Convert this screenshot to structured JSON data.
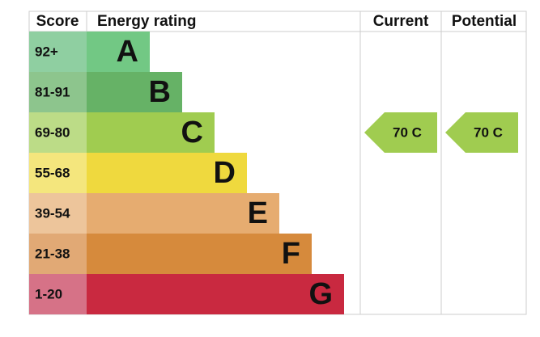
{
  "header": {
    "score": "Score",
    "rating": "Energy rating",
    "current": "Current",
    "potential": "Potential"
  },
  "rows": [
    {
      "score": "92+",
      "letter": "A",
      "color": "#72c884",
      "score_color": "#8fcfa1"
    },
    {
      "score": "81-91",
      "letter": "B",
      "color": "#66b266",
      "score_color": "#8dc58d"
    },
    {
      "score": "69-80",
      "letter": "C",
      "color": "#a0cc50",
      "score_color": "#bcdc87"
    },
    {
      "score": "55-68",
      "letter": "D",
      "color": "#efd93e",
      "score_color": "#f4e67d"
    },
    {
      "score": "39-54",
      "letter": "E",
      "color": "#e6ac70",
      "score_color": "#edc59b"
    },
    {
      "score": "21-38",
      "letter": "F",
      "color": "#d68a3c",
      "score_color": "#e1a975"
    },
    {
      "score": "1-20",
      "letter": "G",
      "color": "#c92940",
      "score_color": "#d67287"
    }
  ],
  "current": {
    "label": "70 C",
    "row": 2
  },
  "potential": {
    "label": "70 C",
    "row": 2
  }
}
